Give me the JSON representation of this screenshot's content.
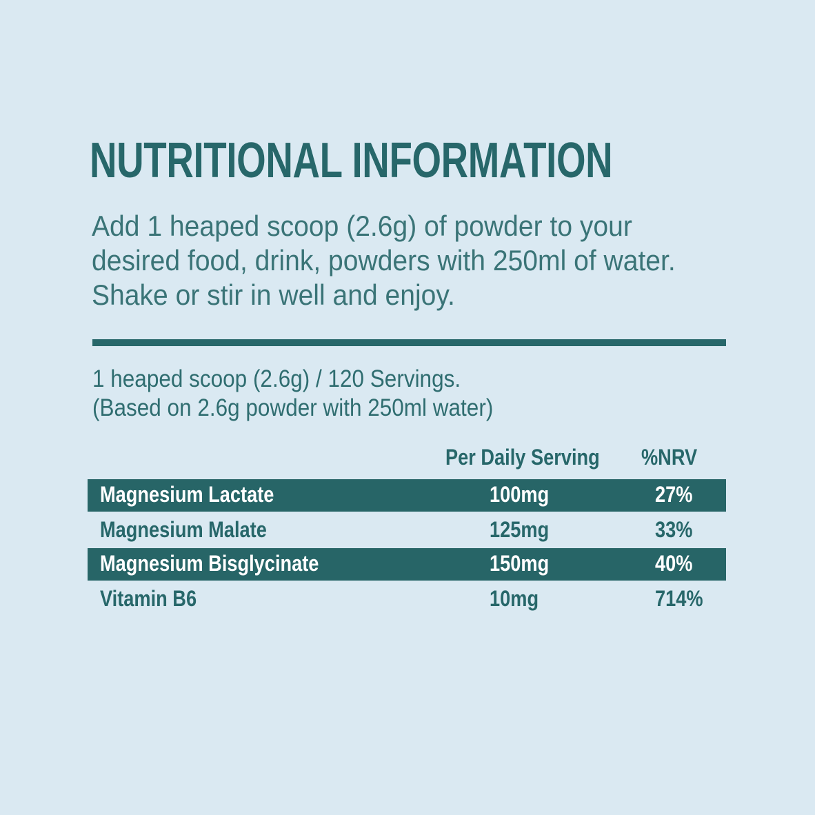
{
  "title": "NUTRITIONAL INFORMATION",
  "instructions": [
    "Add 1 heaped scoop (2.6g) of powder to your",
    "desired food, drink, powders with 250ml of water.",
    "Shake or stir in well and enjoy."
  ],
  "serving": {
    "line1": "1 heaped scoop (2.6g) / 120 Servings.",
    "line2": "(Based on 2.6g powder with 250ml water)"
  },
  "table": {
    "headers": [
      "Per Daily Serving",
      "%NRV"
    ],
    "rows": [
      {
        "name": "Magnesium Lactate",
        "amount": "100mg",
        "nrv": "27%"
      },
      {
        "name": "Magnesium Malate",
        "amount": "125mg",
        "nrv": "33%"
      },
      {
        "name": "Magnesium Bisglycinate",
        "amount": "150mg",
        "nrv": "40%"
      },
      {
        "name": "Vitamin B6",
        "amount": "10mg",
        "nrv": "714%"
      }
    ]
  },
  "colors": {
    "background": "#dae9f2",
    "accent": "#27676a"
  }
}
